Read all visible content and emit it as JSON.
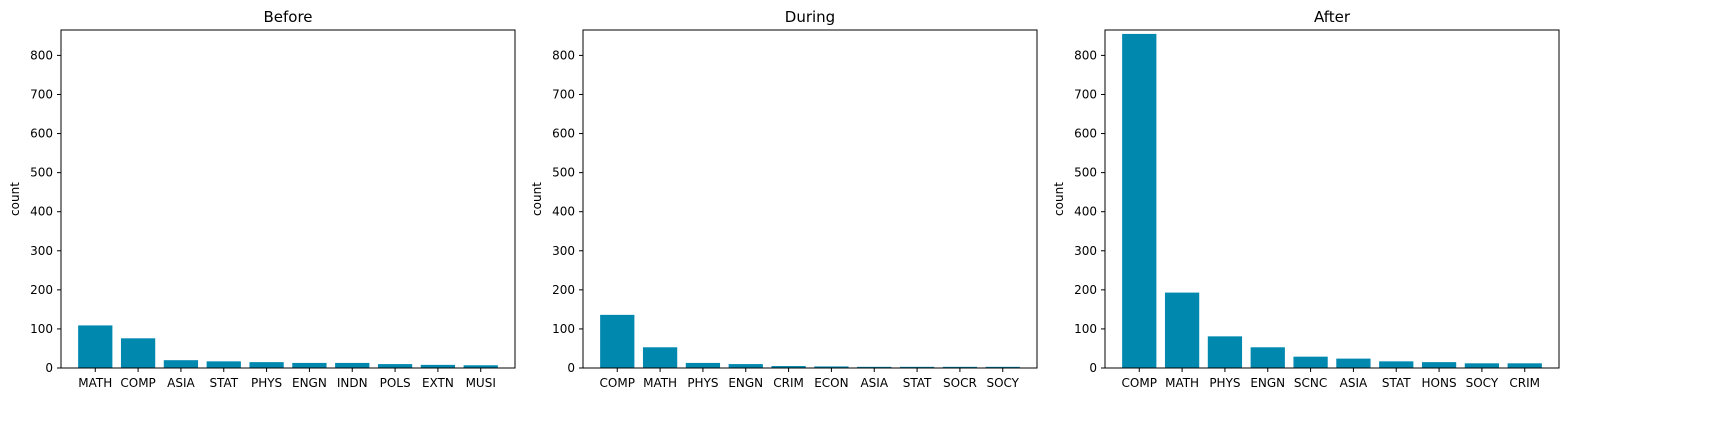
{
  "colors": {
    "bar": "#0088AF"
  },
  "chart_data": [
    {
      "type": "bar",
      "title": "Before",
      "xlabel": "",
      "ylabel": "count",
      "ylim": [
        0,
        865
      ],
      "yticks": [
        0,
        100,
        200,
        300,
        400,
        500,
        600,
        700,
        800
      ],
      "categories": [
        "MATH",
        "COMP",
        "ASIA",
        "STAT",
        "PHYS",
        "ENGN",
        "INDN",
        "POLS",
        "EXTN",
        "MUSI"
      ],
      "values": [
        109,
        76,
        20,
        17,
        15,
        13,
        13,
        10,
        8,
        7
      ]
    },
    {
      "type": "bar",
      "title": "During",
      "xlabel": "",
      "ylabel": "count",
      "ylim": [
        0,
        865
      ],
      "yticks": [
        0,
        100,
        200,
        300,
        400,
        500,
        600,
        700,
        800
      ],
      "categories": [
        "COMP",
        "MATH",
        "PHYS",
        "ENGN",
        "CRIM",
        "ECON",
        "ASIA",
        "STAT",
        "SOCR",
        "SOCY"
      ],
      "values": [
        136,
        53,
        13,
        10,
        5,
        4,
        3,
        3,
        3,
        3
      ]
    },
    {
      "type": "bar",
      "title": "After",
      "xlabel": "",
      "ylabel": "count",
      "ylim": [
        0,
        865
      ],
      "yticks": [
        0,
        100,
        200,
        300,
        400,
        500,
        600,
        700,
        800
      ],
      "categories": [
        "COMP",
        "MATH",
        "PHYS",
        "ENGN",
        "SCNC",
        "ASIA",
        "STAT",
        "HONS",
        "SOCY",
        "CRIM"
      ],
      "values": [
        855,
        193,
        81,
        53,
        29,
        24,
        17,
        15,
        12,
        12
      ]
    }
  ]
}
